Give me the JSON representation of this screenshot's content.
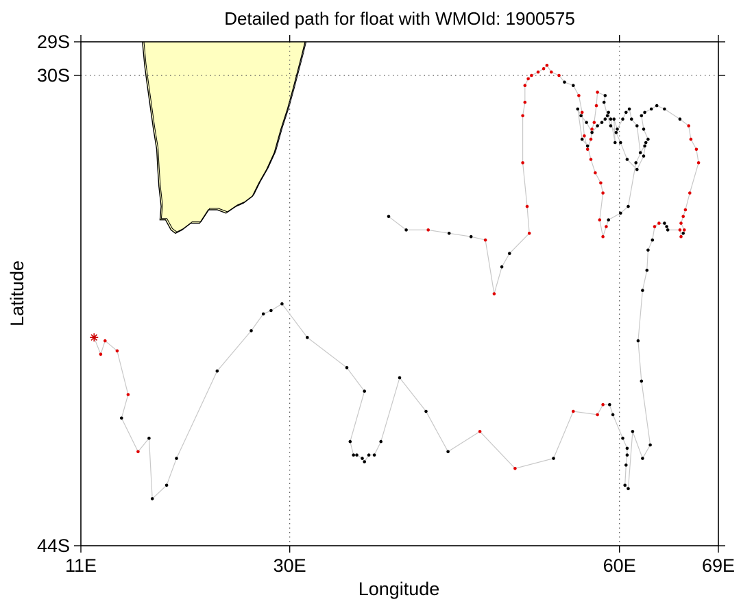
{
  "chart_data": {
    "type": "scatter",
    "title": "Detailed path for float with WMOId: 1900575",
    "xlabel": "Longitude",
    "ylabel": "Latitude",
    "xlim": [
      11,
      69
    ],
    "ylim": [
      -44,
      -29
    ],
    "x_ticks": [
      {
        "value": 11,
        "label": "11E"
      },
      {
        "value": 30,
        "label": "30E"
      },
      {
        "value": 60,
        "label": "60E"
      },
      {
        "value": 69,
        "label": "69E"
      }
    ],
    "y_ticks": [
      {
        "value": -29,
        "label": "29S"
      },
      {
        "value": -30,
        "label": "30S"
      },
      {
        "value": -44,
        "label": "44S"
      }
    ],
    "grid_lon": [
      30,
      60
    ],
    "grid_lat": [
      -30
    ],
    "colors": {
      "land_fill": "#ffffc0",
      "track_line": "#c8c8c8",
      "point_black": "#000000",
      "point_red": "#e00000",
      "start_marker": "#cc0000"
    },
    "start_marker_icon": "asterisk-icon",
    "land_outline": [
      [
        16.6,
        -29.0
      ],
      [
        16.8,
        -29.7
      ],
      [
        17.0,
        -30.2
      ],
      [
        17.3,
        -30.9
      ],
      [
        17.6,
        -31.6
      ],
      [
        17.9,
        -32.2
      ],
      [
        18.0,
        -32.8
      ],
      [
        18.1,
        -33.3
      ],
      [
        18.3,
        -33.9
      ],
      [
        18.2,
        -34.3
      ],
      [
        18.7,
        -34.3
      ],
      [
        19.2,
        -34.6
      ],
      [
        19.6,
        -34.7
      ],
      [
        20.2,
        -34.6
      ],
      [
        21.0,
        -34.4
      ],
      [
        21.8,
        -34.4
      ],
      [
        22.6,
        -34.0
      ],
      [
        23.4,
        -34.0
      ],
      [
        24.2,
        -34.1
      ],
      [
        25.1,
        -33.9
      ],
      [
        25.8,
        -33.8
      ],
      [
        26.6,
        -33.6
      ],
      [
        27.2,
        -33.2
      ],
      [
        27.9,
        -32.8
      ],
      [
        28.6,
        -32.3
      ],
      [
        29.2,
        -31.6
      ],
      [
        29.8,
        -31.0
      ],
      [
        30.3,
        -30.4
      ],
      [
        30.7,
        -29.9
      ],
      [
        31.1,
        -29.4
      ],
      [
        31.4,
        -29.0
      ]
    ],
    "series": [
      {
        "points": [
          [
            12.2,
            -37.8,
            "red"
          ],
          [
            12.8,
            -38.3,
            "red"
          ],
          [
            13.2,
            -37.9,
            "red"
          ],
          [
            14.3,
            -38.2,
            "red"
          ],
          [
            15.3,
            -39.5,
            "red"
          ],
          [
            14.7,
            -40.2,
            "black"
          ],
          [
            16.2,
            -41.2,
            "red"
          ],
          [
            17.2,
            -40.8,
            "black"
          ],
          [
            17.5,
            -42.6,
            "black"
          ],
          [
            18.8,
            -42.2,
            "black"
          ],
          [
            19.7,
            -41.4,
            "black"
          ],
          [
            23.4,
            -38.8,
            "black"
          ],
          [
            26.5,
            -37.6,
            "black"
          ],
          [
            27.6,
            -37.1,
            "black"
          ],
          [
            28.3,
            -37.0,
            "black"
          ],
          [
            29.3,
            -36.8,
            "black"
          ],
          [
            31.6,
            -37.8,
            "black"
          ],
          [
            35.2,
            -38.7,
            "black"
          ],
          [
            36.8,
            -39.4,
            "black"
          ],
          [
            35.5,
            -40.9,
            "black"
          ],
          [
            35.8,
            -41.3,
            "black"
          ],
          [
            36.1,
            -41.3,
            "black"
          ],
          [
            36.6,
            -41.4,
            "black"
          ],
          [
            36.8,
            -41.5,
            "black"
          ],
          [
            37.2,
            -41.3,
            "black"
          ],
          [
            37.7,
            -41.3,
            "black"
          ],
          [
            38.3,
            -40.9,
            "black"
          ],
          [
            40.0,
            -39.0,
            "black"
          ],
          [
            42.4,
            -40.0,
            "black"
          ],
          [
            44.4,
            -41.2,
            "black"
          ],
          [
            47.3,
            -40.6,
            "red"
          ],
          [
            50.5,
            -41.7,
            "red"
          ],
          [
            54.0,
            -41.4,
            "black"
          ],
          [
            55.8,
            -40.0,
            "red"
          ],
          [
            58.0,
            -40.1,
            "red"
          ],
          [
            58.5,
            -39.8,
            "red"
          ],
          [
            59.1,
            -39.8,
            "black"
          ],
          [
            59.4,
            -40.1,
            "black"
          ],
          [
            60.3,
            -40.8,
            "black"
          ],
          [
            60.7,
            -41.1,
            "black"
          ],
          [
            60.7,
            -41.3,
            "black"
          ],
          [
            60.6,
            -41.6,
            "black"
          ],
          [
            60.5,
            -42.2,
            "black"
          ],
          [
            60.8,
            -42.3,
            "black"
          ],
          [
            61.2,
            -40.6,
            "black"
          ],
          [
            62.1,
            -41.4,
            "black"
          ],
          [
            62.8,
            -41.0,
            "black"
          ],
          [
            62.0,
            -39.1,
            "black"
          ],
          [
            61.7,
            -37.9,
            "black"
          ],
          [
            62.1,
            -36.4,
            "black"
          ],
          [
            62.5,
            -35.8,
            "black"
          ],
          [
            62.6,
            -35.2,
            "black"
          ],
          [
            63.0,
            -34.9,
            "black"
          ],
          [
            63.2,
            -34.5,
            "red"
          ],
          [
            63.6,
            -34.4,
            "red"
          ],
          [
            64.1,
            -34.4,
            "black"
          ],
          [
            64.3,
            -34.5,
            "black"
          ],
          [
            64.4,
            -34.6,
            "black"
          ],
          [
            65.5,
            -34.6,
            "red"
          ],
          [
            65.6,
            -34.8,
            "red"
          ],
          [
            65.8,
            -34.7,
            "black"
          ],
          [
            65.9,
            -34.6,
            "red"
          ],
          [
            65.6,
            -34.4,
            "red"
          ],
          [
            65.8,
            -34.2,
            "red"
          ],
          [
            66.0,
            -34.0,
            "red"
          ],
          [
            66.4,
            -33.5,
            "red"
          ],
          [
            67.2,
            -32.6,
            "red"
          ],
          [
            67.0,
            -32.2,
            "red"
          ],
          [
            66.5,
            -31.9,
            "red"
          ],
          [
            66.3,
            -31.5,
            "red"
          ],
          [
            65.5,
            -31.3,
            "black"
          ],
          [
            64.1,
            -31.0,
            "black"
          ],
          [
            63.4,
            -30.9,
            "black"
          ],
          [
            62.9,
            -31.0,
            "black"
          ],
          [
            62.3,
            -31.1,
            "black"
          ],
          [
            62.0,
            -31.2,
            "black"
          ],
          [
            62.2,
            -31.6,
            "black"
          ],
          [
            62.6,
            -31.9,
            "black"
          ],
          [
            62.3,
            -32.1,
            "black"
          ],
          [
            61.9,
            -32.3,
            "black"
          ],
          [
            61.6,
            -31.5,
            "black"
          ],
          [
            61.1,
            -31.3,
            "black"
          ],
          [
            60.9,
            -31.0,
            "black"
          ],
          [
            60.6,
            -31.1,
            "black"
          ],
          [
            60.3,
            -31.3,
            "black"
          ],
          [
            59.8,
            -31.6,
            "black"
          ],
          [
            59.5,
            -31.3,
            "black"
          ],
          [
            59.6,
            -32.0,
            "black"
          ],
          [
            59.2,
            -31.3,
            "black"
          ],
          [
            59.0,
            -31.1,
            "black"
          ],
          [
            58.7,
            -31.3,
            "black"
          ],
          [
            58.4,
            -31.4,
            "black"
          ],
          [
            58.0,
            -31.5,
            "black"
          ],
          [
            57.5,
            -31.7,
            "black"
          ],
          [
            57.0,
            -31.4,
            "black"
          ],
          [
            56.5,
            -31.2,
            "black"
          ],
          [
            56.2,
            -31.0,
            "black"
          ],
          [
            56.6,
            -31.9,
            "black"
          ],
          [
            57.1,
            -32.1,
            "black"
          ],
          [
            57.4,
            -32.5,
            "red"
          ],
          [
            57.8,
            -32.9,
            "red"
          ],
          [
            58.3,
            -33.2,
            "red"
          ],
          [
            58.5,
            -33.5,
            "red"
          ],
          [
            58.2,
            -34.3,
            "red"
          ],
          [
            58.5,
            -34.8,
            "red"
          ],
          [
            58.8,
            -34.5,
            "red"
          ],
          [
            59.0,
            -34.3,
            "black"
          ],
          [
            60.1,
            -34.1,
            "black"
          ],
          [
            60.8,
            -33.9,
            "black"
          ],
          [
            61.5,
            -32.6,
            "black"
          ],
          [
            62.4,
            -32.0,
            "black"
          ],
          [
            62.2,
            -32.4,
            "black"
          ],
          [
            61.6,
            -32.8,
            "black"
          ],
          [
            60.7,
            -32.5,
            "black"
          ],
          [
            60.1,
            -32.0,
            "black"
          ],
          [
            59.7,
            -31.7,
            "black"
          ],
          [
            59.2,
            -31.5,
            "black"
          ],
          [
            58.9,
            -31.2,
            "black"
          ],
          [
            58.6,
            -30.8,
            "black"
          ],
          [
            58.7,
            -30.6,
            "black"
          ],
          [
            58.0,
            -30.5,
            "red"
          ],
          [
            57.9,
            -30.9,
            "red"
          ],
          [
            57.7,
            -31.4,
            "red"
          ],
          [
            57.5,
            -31.6,
            "red"
          ],
          [
            57.4,
            -31.9,
            "red"
          ],
          [
            57.1,
            -32.2,
            "red"
          ],
          [
            56.8,
            -31.8,
            "red"
          ],
          [
            56.6,
            -31.1,
            "red"
          ],
          [
            56.3,
            -30.6,
            "red"
          ],
          [
            55.8,
            -30.3,
            "black"
          ],
          [
            55.0,
            -30.2,
            "black"
          ],
          [
            54.5,
            -30.0,
            "red"
          ],
          [
            53.8,
            -29.9,
            "red"
          ],
          [
            53.4,
            -29.7,
            "red"
          ],
          [
            53.1,
            -29.8,
            "red"
          ],
          [
            52.6,
            -29.9,
            "red"
          ],
          [
            52.0,
            -30.0,
            "red"
          ],
          [
            51.7,
            -30.1,
            "red"
          ],
          [
            51.4,
            -30.3,
            "red"
          ],
          [
            51.4,
            -30.8,
            "red"
          ],
          [
            51.2,
            -31.2,
            "red"
          ],
          [
            51.2,
            -32.6,
            "red"
          ],
          [
            51.6,
            -33.9,
            "red"
          ],
          [
            51.8,
            -34.7,
            "red"
          ],
          [
            50.0,
            -35.3,
            "black"
          ],
          [
            49.3,
            -35.7,
            "black"
          ],
          [
            48.6,
            -36.5,
            "red"
          ],
          [
            47.8,
            -34.9,
            "red"
          ],
          [
            46.5,
            -34.8,
            "black"
          ],
          [
            44.5,
            -34.7,
            "black"
          ],
          [
            42.6,
            -34.6,
            "red"
          ],
          [
            40.6,
            -34.6,
            "black"
          ],
          [
            39.0,
            -34.2,
            "black"
          ]
        ]
      }
    ]
  }
}
